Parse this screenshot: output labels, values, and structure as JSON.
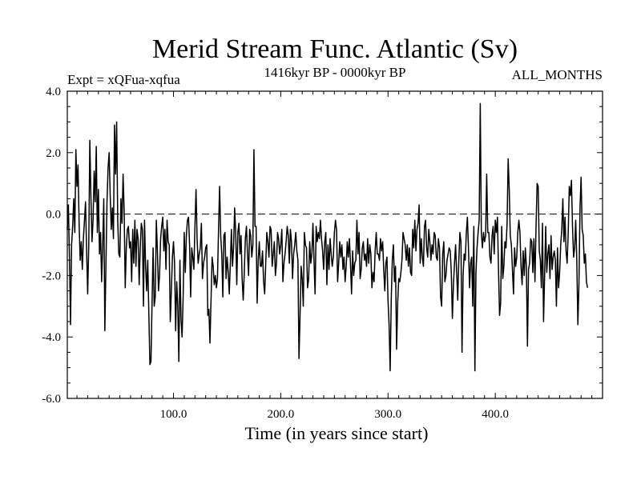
{
  "chart_data": {
    "type": "line",
    "title": "Merid Stream Func. Atlantic (Sv)",
    "subtitle_left": "Expt = xQFua-xqfua",
    "subtitle_center": "1416kyr BP - 0000kyr BP",
    "subtitle_right": "ALL_MONTHS",
    "xlabel": "Time (in years since start)",
    "ylabel": "",
    "xlim": [
      1,
      500
    ],
    "ylim": [
      -6.0,
      4.0
    ],
    "x_ticks": [
      100,
      200,
      300,
      400
    ],
    "x_tick_labels": [
      "100.0",
      "200.0",
      "300.0",
      "400.0"
    ],
    "y_ticks": [
      -6,
      -4,
      -2,
      0,
      2,
      4
    ],
    "y_tick_labels": [
      "-6.0",
      "-4.0",
      "-2.0",
      "0.0",
      "2.0",
      "4.0"
    ],
    "reference_line": {
      "y": 0.0,
      "style": "dashed"
    },
    "series": [
      {
        "name": "Merid Stream Func. Atlantic",
        "x_start": 1,
        "x_step": 1,
        "values": [
          -0.5,
          0.3,
          -1.4,
          -3.6,
          -1.0,
          -0.4,
          0.5,
          -0.6,
          2.1,
          0.9,
          1.6,
          -0.3,
          -1.5,
          -0.9,
          -1.8,
          -0.8,
          -0.2,
          0.4,
          -1.2,
          -2.6,
          -1.0,
          2.4,
          0.6,
          -0.9,
          -0.2,
          1.4,
          0.4,
          2.2,
          -0.6,
          0.8,
          -1.3,
          -0.6,
          -2.2,
          -1.0,
          0.5,
          -3.8,
          -1.7,
          0.4,
          1.5,
          2.0,
          0.6,
          -0.5,
          0.2,
          -0.8,
          2.9,
          1.3,
          3.0,
          -0.2,
          -1.3,
          -1.4,
          0.5,
          -0.3,
          1.3,
          0.1,
          -2.4,
          -1.1,
          -0.5,
          -0.4,
          -1.1,
          -0.9,
          -2.2,
          -0.5,
          -1.6,
          -0.2,
          -1.7,
          -0.5,
          -0.8,
          -2.3,
          -1.1,
          -0.3,
          -0.5,
          -3.0,
          -0.2,
          -1.7,
          -2.5,
          -1.5,
          -3.2,
          -4.9,
          -4.8,
          -2.9,
          -1.1,
          -3.0,
          -2.7,
          -0.2,
          -1.2,
          -2.5,
          -2.0,
          -0.8,
          -0.4,
          -0.1,
          -1.2,
          -0.5,
          -1.8,
          -0.2,
          -0.9,
          -1.0,
          -3.5,
          -2.5,
          -1.4,
          -0.9,
          -1.6,
          -3.8,
          -2.2,
          -3.0,
          -4.8,
          -1.5,
          -3.4,
          -4.0,
          -2.7,
          -0.6,
          -1.9,
          -0.7,
          -0.2,
          -0.1,
          -1.0,
          -2.7,
          -1.1,
          -1.4,
          -1.8,
          -0.4,
          0.8,
          -0.8,
          -1.6,
          -1.3,
          -1.1,
          -0.3,
          -2.1,
          -1.6,
          -1.4,
          -1.1,
          -1.0,
          -3.3,
          -3.1,
          -4.2,
          -2.8,
          -1.4,
          -1.7,
          -2.3,
          -2.0,
          -2.4,
          -2.1,
          -0.5,
          0.9,
          -0.7,
          -1.3,
          -2.7,
          -0.7,
          -0.6,
          -2.1,
          -1.4,
          -1.9,
          -2.6,
          -1.6,
          -0.5,
          -1.7,
          -1.1,
          0.2,
          -0.6,
          -2.3,
          -0.6,
          -0.3,
          -1.3,
          -0.7,
          -2.1,
          -2.8,
          -1.9,
          -0.8,
          -0.4,
          -1.3,
          -2.0,
          -0.5,
          -0.7,
          -1.4,
          -1.0,
          2.1,
          -0.4,
          -0.4,
          -2.9,
          -1.5,
          -0.9,
          -1.7,
          -1.7,
          -1.2,
          -2.2,
          -2.6,
          -1.6,
          -0.6,
          -0.9,
          -1.4,
          -0.4,
          -0.5,
          -1.7,
          -1.3,
          -0.9,
          -2.0,
          -1.6,
          -0.6,
          -0.8,
          -1.3,
          -1.0,
          -0.5,
          -2.2,
          -1.6,
          -1.3,
          -0.9,
          -0.4,
          -0.7,
          -1.6,
          -0.5,
          -0.9,
          -2.1,
          -1.3,
          -1.0,
          -0.6,
          -1.2,
          -1.5,
          -4.7,
          -3.3,
          -1.7,
          -2.1,
          -3.0,
          -0.6,
          -1.0,
          -1.1,
          -2.4,
          -2.1,
          -0.9,
          -1.6,
          -1.3,
          -0.3,
          -1.5,
          -2.6,
          -0.4,
          -0.9,
          -0.6,
          -0.8,
          -0.2,
          -0.8,
          -1.2,
          -1.8,
          -0.9,
          -0.6,
          -2.3,
          -1.0,
          -1.8,
          -0.8,
          -1.3,
          -1.7,
          -1.4,
          -0.6,
          -0.2,
          -0.5,
          -2.2,
          -1.6,
          -0.9,
          -1.4,
          -1.0,
          -1.8,
          -1.4,
          -2.2,
          -1.7,
          -0.9,
          -1.4,
          -0.8,
          -1.6,
          -2.6,
          -1.2,
          -2.0,
          -1.6,
          -1.5,
          -0.2,
          -1.3,
          -0.6,
          -2.1,
          -1.8,
          -1.1,
          -0.9,
          -1.5,
          -1.3,
          -1.7,
          -0.8,
          -1.6,
          -1.0,
          -1.3,
          -2.4,
          -1.9,
          -2.2,
          -1.2,
          -0.6,
          -1.3,
          -1.3,
          -1.5,
          -0.8,
          -1.2,
          -0.9,
          -1.8,
          -2.5,
          -1.6,
          -1.4,
          -2.8,
          -3.6,
          -5.1,
          -2.8,
          -1.5,
          -1.0,
          -2.2,
          -1.7,
          -4.4,
          -2.9,
          -2.1,
          -2.2,
          -1.9,
          -1.5,
          -0.6,
          -0.8,
          -1.0,
          -1.5,
          -1.0,
          -1.7,
          -1.1,
          -1.9,
          -2.0,
          -0.5,
          -1.1,
          -0.2,
          -1.2,
          -0.5,
          -0.3,
          0.3,
          -1.6,
          -0.8,
          -1.4,
          -1.7,
          -0.4,
          -0.2,
          -1.1,
          -1.4,
          -0.5,
          -0.9,
          -1.5,
          -1.0,
          -1.3,
          -0.6,
          -0.7,
          -1.4,
          -1.5,
          -0.8,
          -1.1,
          -2.7,
          -3.0,
          -1.3,
          -0.9,
          -2.2,
          -2.0,
          -1.5,
          -1.3,
          -1.1,
          -1.2,
          -1.9,
          -3.4,
          -2.3,
          -1.6,
          -1.0,
          -1.9,
          -2.8,
          -1.5,
          -0.6,
          -0.9,
          -4.5,
          -2.0,
          -1.3,
          -1.5,
          -0.6,
          -0.1,
          -1.1,
          -2.4,
          -1.6,
          -1.4,
          -3.0,
          -0.4,
          -5.1,
          -1.9,
          -1.1,
          -0.6,
          -0.2,
          3.6,
          -0.6,
          -1.1,
          -0.6,
          -0.9,
          -0.7,
          1.3,
          -0.6,
          -0.6,
          -1.4,
          -1.6,
          -0.7,
          -0.4,
          -1.3,
          -0.2,
          -0.6,
          -0.1,
          -1.8,
          -3.3,
          -2.9,
          -0.4,
          -2.1,
          -1.7,
          -0.9,
          -1.1,
          -0.3,
          1.8,
          0.8,
          -0.7,
          -1.0,
          -1.8,
          -2.6,
          -1.1,
          -1.7,
          -1.4,
          -0.6,
          -0.2,
          -0.6,
          -1.7,
          -2.3,
          -1.2,
          -2.0,
          -1.1,
          -1.7,
          -4.3,
          -1.8,
          -1.6,
          -0.8,
          -0.9,
          -1.9,
          -0.8,
          -2.2,
          -0.4,
          1.0,
          0.9,
          -1.2,
          -1.5,
          -2.4,
          -0.3,
          -3.5,
          -2.0,
          -0.4,
          -1.9,
          -1.3,
          -1.0,
          -2.1,
          -0.7,
          -1.8,
          -1.4,
          -1.2,
          -1.5,
          -3.0,
          -1.1,
          -2.4,
          -1.9,
          -1.0,
          -0.5,
          0.5,
          -0.9,
          -0.1,
          -1.2,
          -1.6,
          -0.6,
          0.9,
          0.6,
          1.1,
          -0.4,
          -1.4,
          -1.1,
          -0.2,
          -1.5,
          -3.6,
          -2.3,
          0.2,
          1.2,
          -0.5,
          -0.7,
          -1.6,
          -1.3,
          -2.2,
          -2.4
        ]
      }
    ]
  }
}
